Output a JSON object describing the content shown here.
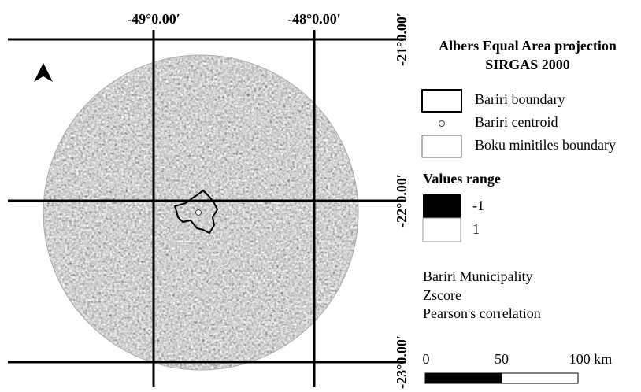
{
  "map": {
    "longitude_labels": [
      "-49°0.00′",
      "-48°0.00′"
    ],
    "latitude_labels": [
      "-21°0.00′",
      "-22°0.00′",
      "-23°0.00′"
    ],
    "legend": {
      "title": [
        "Albers Equal Area projection",
        "SIRGAS 2000"
      ],
      "items": [
        "Bariri boundary",
        "Bariri centroid",
        "Boku minitiles boundary"
      ],
      "values_range": {
        "title": "Values range",
        "min": "-1",
        "max": "1"
      },
      "notes": [
        "Bariri Municipality",
        "Zscore",
        "Pearson's correlation"
      ]
    },
    "scale_bar": {
      "labels": [
        "0",
        "50",
        "100 km"
      ]
    }
  }
}
